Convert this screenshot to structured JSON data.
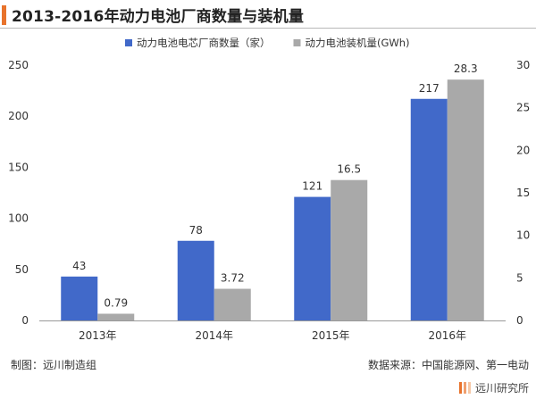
{
  "title": "2013-2016年动力电池厂商数量与装机量",
  "colors": {
    "series1": "#4169c9",
    "series2": "#a9a9a9",
    "accent": "#e8732c"
  },
  "chart_data": {
    "type": "bar",
    "categories": [
      "2013年",
      "2014年",
      "2015年",
      "2016年"
    ],
    "series": [
      {
        "name": "动力电池电芯厂商数量（家）",
        "axis": "left",
        "values": [
          43,
          78,
          121,
          217
        ],
        "labels": [
          "43",
          "78",
          "121",
          "217"
        ]
      },
      {
        "name": "动力电池装机量(GWh)",
        "axis": "right",
        "values": [
          0.79,
          3.72,
          16.5,
          28.3
        ],
        "labels": [
          "0.79",
          "3.72",
          "16.5",
          "28.3"
        ]
      }
    ],
    "ylim_left": [
      0,
      250
    ],
    "yticks_left": [
      "0",
      "50",
      "100",
      "150",
      "200",
      "250"
    ],
    "ylim_right": [
      0,
      30
    ],
    "yticks_right": [
      "0",
      "5",
      "10",
      "15",
      "20",
      "25",
      "30"
    ],
    "legend_position": "top-center",
    "grid": false
  },
  "footer": {
    "left": "制图：远川制造组",
    "right": "数据来源：中国能源网、第一电动"
  },
  "brand": "远川研究所"
}
